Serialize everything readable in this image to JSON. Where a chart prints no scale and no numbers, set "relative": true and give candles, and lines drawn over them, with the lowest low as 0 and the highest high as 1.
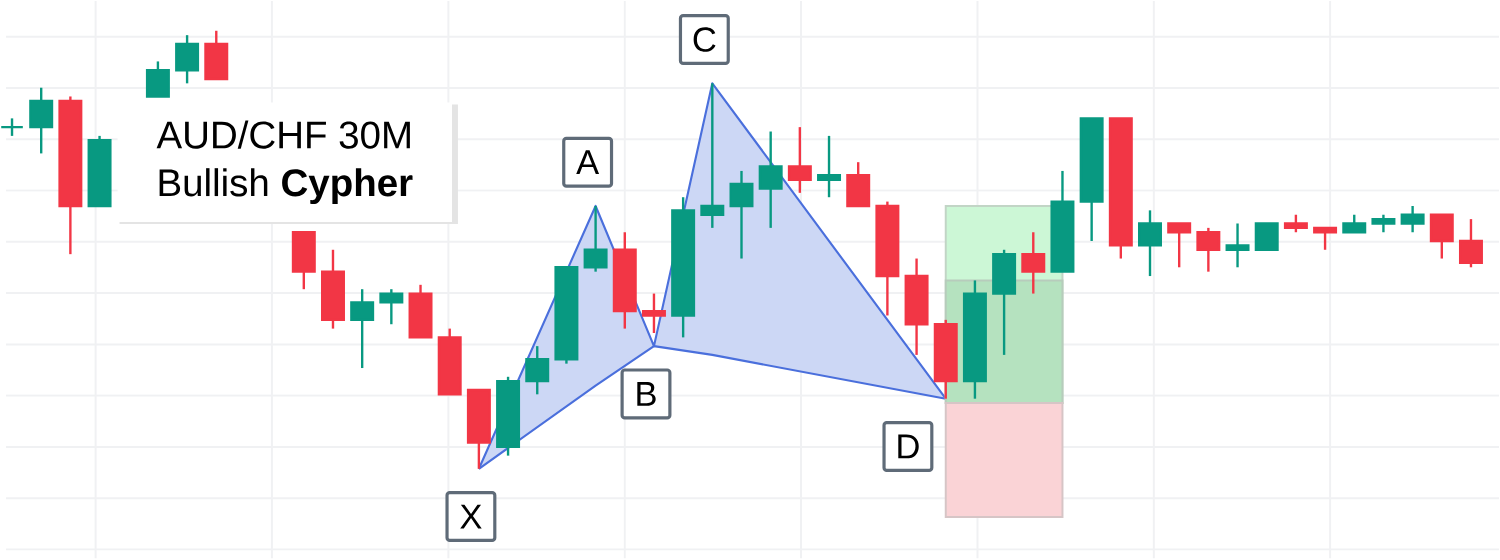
{
  "chart_data": {
    "type": "candlestick",
    "relative": true,
    "grid": true,
    "title": "AUD/CHF 30M",
    "subtitle": "Bullish **Cypher**",
    "categories": [
      null,
      null,
      null,
      null,
      null,
      null,
      null,
      null,
      null,
      null,
      null,
      null,
      null,
      null,
      null,
      null,
      null,
      null,
      null,
      null,
      null,
      null,
      null,
      null,
      null,
      null,
      null,
      null,
      null,
      null,
      null,
      null,
      null,
      null,
      null,
      null,
      null,
      null,
      null,
      null,
      null,
      null,
      null,
      null,
      null,
      null,
      null,
      null,
      null,
      null,
      null
    ],
    "ohlc": [
      [
        0.78,
        0.8,
        0.76,
        0.78
      ],
      [
        0.78,
        0.87,
        0.72,
        0.84
      ],
      [
        0.84,
        0.85,
        0.49,
        0.6
      ],
      [
        0.6,
        0.76,
        0.6,
        0.75
      ],
      null,
      [
        0.85,
        0.93,
        0.85,
        0.91
      ],
      [
        0.91,
        0.99,
        0.88,
        0.97
      ],
      [
        0.97,
        1.0,
        0.89,
        0.89
      ],
      null,
      null,
      [
        0.54,
        0.54,
        0.41,
        0.45
      ],
      [
        0.45,
        0.5,
        0.32,
        0.34
      ],
      [
        0.34,
        0.41,
        0.23,
        0.38
      ],
      [
        0.38,
        0.41,
        0.33,
        0.4
      ],
      [
        0.4,
        0.42,
        0.3,
        0.3
      ],
      [
        0.3,
        0.32,
        0.17,
        0.17
      ],
      [
        0.18,
        0.18,
        0.0,
        0.06
      ],
      [
        0.05,
        0.21,
        0.03,
        0.2
      ],
      [
        0.2,
        0.28,
        0.17,
        0.25
      ],
      [
        0.25,
        0.46,
        0.24,
        0.46
      ],
      [
        0.46,
        0.6,
        0.45,
        0.5
      ],
      [
        0.5,
        0.54,
        0.32,
        0.36
      ],
      [
        0.36,
        0.4,
        0.31,
        0.35
      ],
      [
        0.35,
        0.62,
        0.3,
        0.59
      ],
      [
        0.58,
        0.88,
        0.55,
        0.6
      ],
      [
        0.6,
        0.68,
        0.48,
        0.65
      ],
      [
        0.64,
        0.77,
        0.55,
        0.69
      ],
      [
        0.69,
        0.78,
        0.63,
        0.66
      ],
      [
        0.66,
        0.76,
        0.62,
        0.67
      ],
      [
        0.67,
        0.7,
        0.6,
        0.6
      ],
      [
        0.6,
        0.61,
        0.35,
        0.44
      ],
      [
        0.44,
        0.48,
        0.26,
        0.33
      ],
      [
        0.33,
        0.34,
        0.16,
        0.2
      ],
      [
        0.2,
        0.43,
        0.16,
        0.4
      ],
      [
        0.4,
        0.5,
        0.26,
        0.49
      ],
      [
        0.49,
        0.54,
        0.4,
        0.45
      ],
      [
        0.45,
        0.68,
        0.45,
        0.61
      ],
      [
        0.61,
        0.8,
        0.52,
        0.8
      ],
      [
        0.8,
        0.8,
        0.48,
        0.51
      ],
      [
        0.51,
        0.59,
        0.44,
        0.56
      ],
      [
        0.56,
        0.56,
        0.46,
        0.54
      ],
      [
        0.54,
        0.55,
        0.45,
        0.5
      ],
      [
        0.5,
        0.56,
        0.46,
        0.51
      ],
      [
        0.5,
        0.56,
        0.5,
        0.56
      ],
      [
        0.56,
        0.58,
        0.54,
        0.55
      ],
      [
        0.55,
        0.55,
        0.5,
        0.54
      ],
      [
        0.54,
        0.58,
        0.54,
        0.56
      ],
      [
        0.56,
        0.58,
        0.54,
        0.57
      ],
      [
        0.56,
        0.6,
        0.54,
        0.58
      ],
      [
        0.58,
        0.58,
        0.48,
        0.52
      ],
      [
        0.52,
        0.57,
        0.46,
        0.47
      ]
    ],
    "colors": [
      "#089981",
      "#089981",
      "#f23645",
      "#089981",
      null,
      "#089981",
      "#089981",
      "#f23645",
      null,
      null,
      "#f23645",
      "#f23645",
      "#089981",
      "#089981",
      "#f23645",
      "#f23645",
      "#f23645",
      "#089981",
      "#089981",
      "#089981",
      "#089981",
      "#f23645",
      "#f23645",
      "#089981",
      "#089981",
      "#089981",
      "#089981",
      "#f23645",
      "#089981",
      "#f23645",
      "#f23645",
      "#f23645",
      "#f23645",
      "#089981",
      "#089981",
      "#f23645",
      "#089981",
      "#089981",
      "#f23645",
      "#089981",
      "#f23645",
      "#f23645",
      "#089981",
      "#089981",
      "#f23645",
      "#f23645",
      "#089981",
      "#089981",
      "#089981",
      "#f23645",
      "#f23645"
    ],
    "series": [
      {
        "type": "line",
        "color": "#4a6fdc",
        "values": [
          null,
          null,
          null,
          null,
          null,
          null,
          null,
          null,
          null,
          null,
          null,
          null,
          null,
          null,
          null,
          null,
          0.0,
          null,
          null,
          null,
          0.6,
          null,
          0.28,
          null,
          0.88,
          null,
          null,
          null,
          null,
          null,
          null,
          null,
          0.16,
          null,
          null,
          null,
          null,
          null,
          null,
          null,
          null,
          null,
          null,
          null,
          null,
          null,
          null,
          null,
          null,
          null,
          null
        ],
        "upper": [
          null,
          null,
          null,
          null,
          null,
          null,
          null,
          null,
          null,
          null,
          null,
          null,
          null,
          null,
          null,
          null,
          0.0,
          null,
          null,
          null,
          0.6,
          null,
          0.28,
          null,
          0.88,
          null,
          null,
          null,
          null,
          null,
          null,
          null,
          0.16,
          null,
          null,
          null,
          null,
          null,
          null,
          null,
          null,
          null,
          null,
          null,
          null,
          null,
          null,
          null,
          null,
          null,
          null
        ],
        "lower": [
          null,
          null,
          null,
          null,
          null,
          null,
          null,
          null,
          null,
          null,
          null,
          null,
          null,
          null,
          null,
          null,
          0.0,
          null,
          null,
          null,
          0.19,
          null,
          0.28,
          null,
          0.26,
          null,
          null,
          null,
          null,
          null,
          null,
          null,
          0.16,
          null,
          null,
          null,
          null,
          null,
          null,
          null,
          null,
          null,
          null,
          null,
          null,
          null,
          null,
          null,
          null,
          null,
          null
        ]
      }
    ],
    "annotations": [
      "X",
      "A",
      "B",
      "C",
      "D"
    ],
    "bands": [
      {
        "axis": "y",
        "from": 0.15,
        "to": 0.6,
        "color": "#ccf7d6"
      },
      {
        "axis": "y",
        "from": 0.15,
        "to": 0.43,
        "color": "#b5e2bf"
      },
      {
        "axis": "y",
        "from": -0.11,
        "to": 0.15,
        "color": "#fad3d6"
      }
    ]
  }
}
